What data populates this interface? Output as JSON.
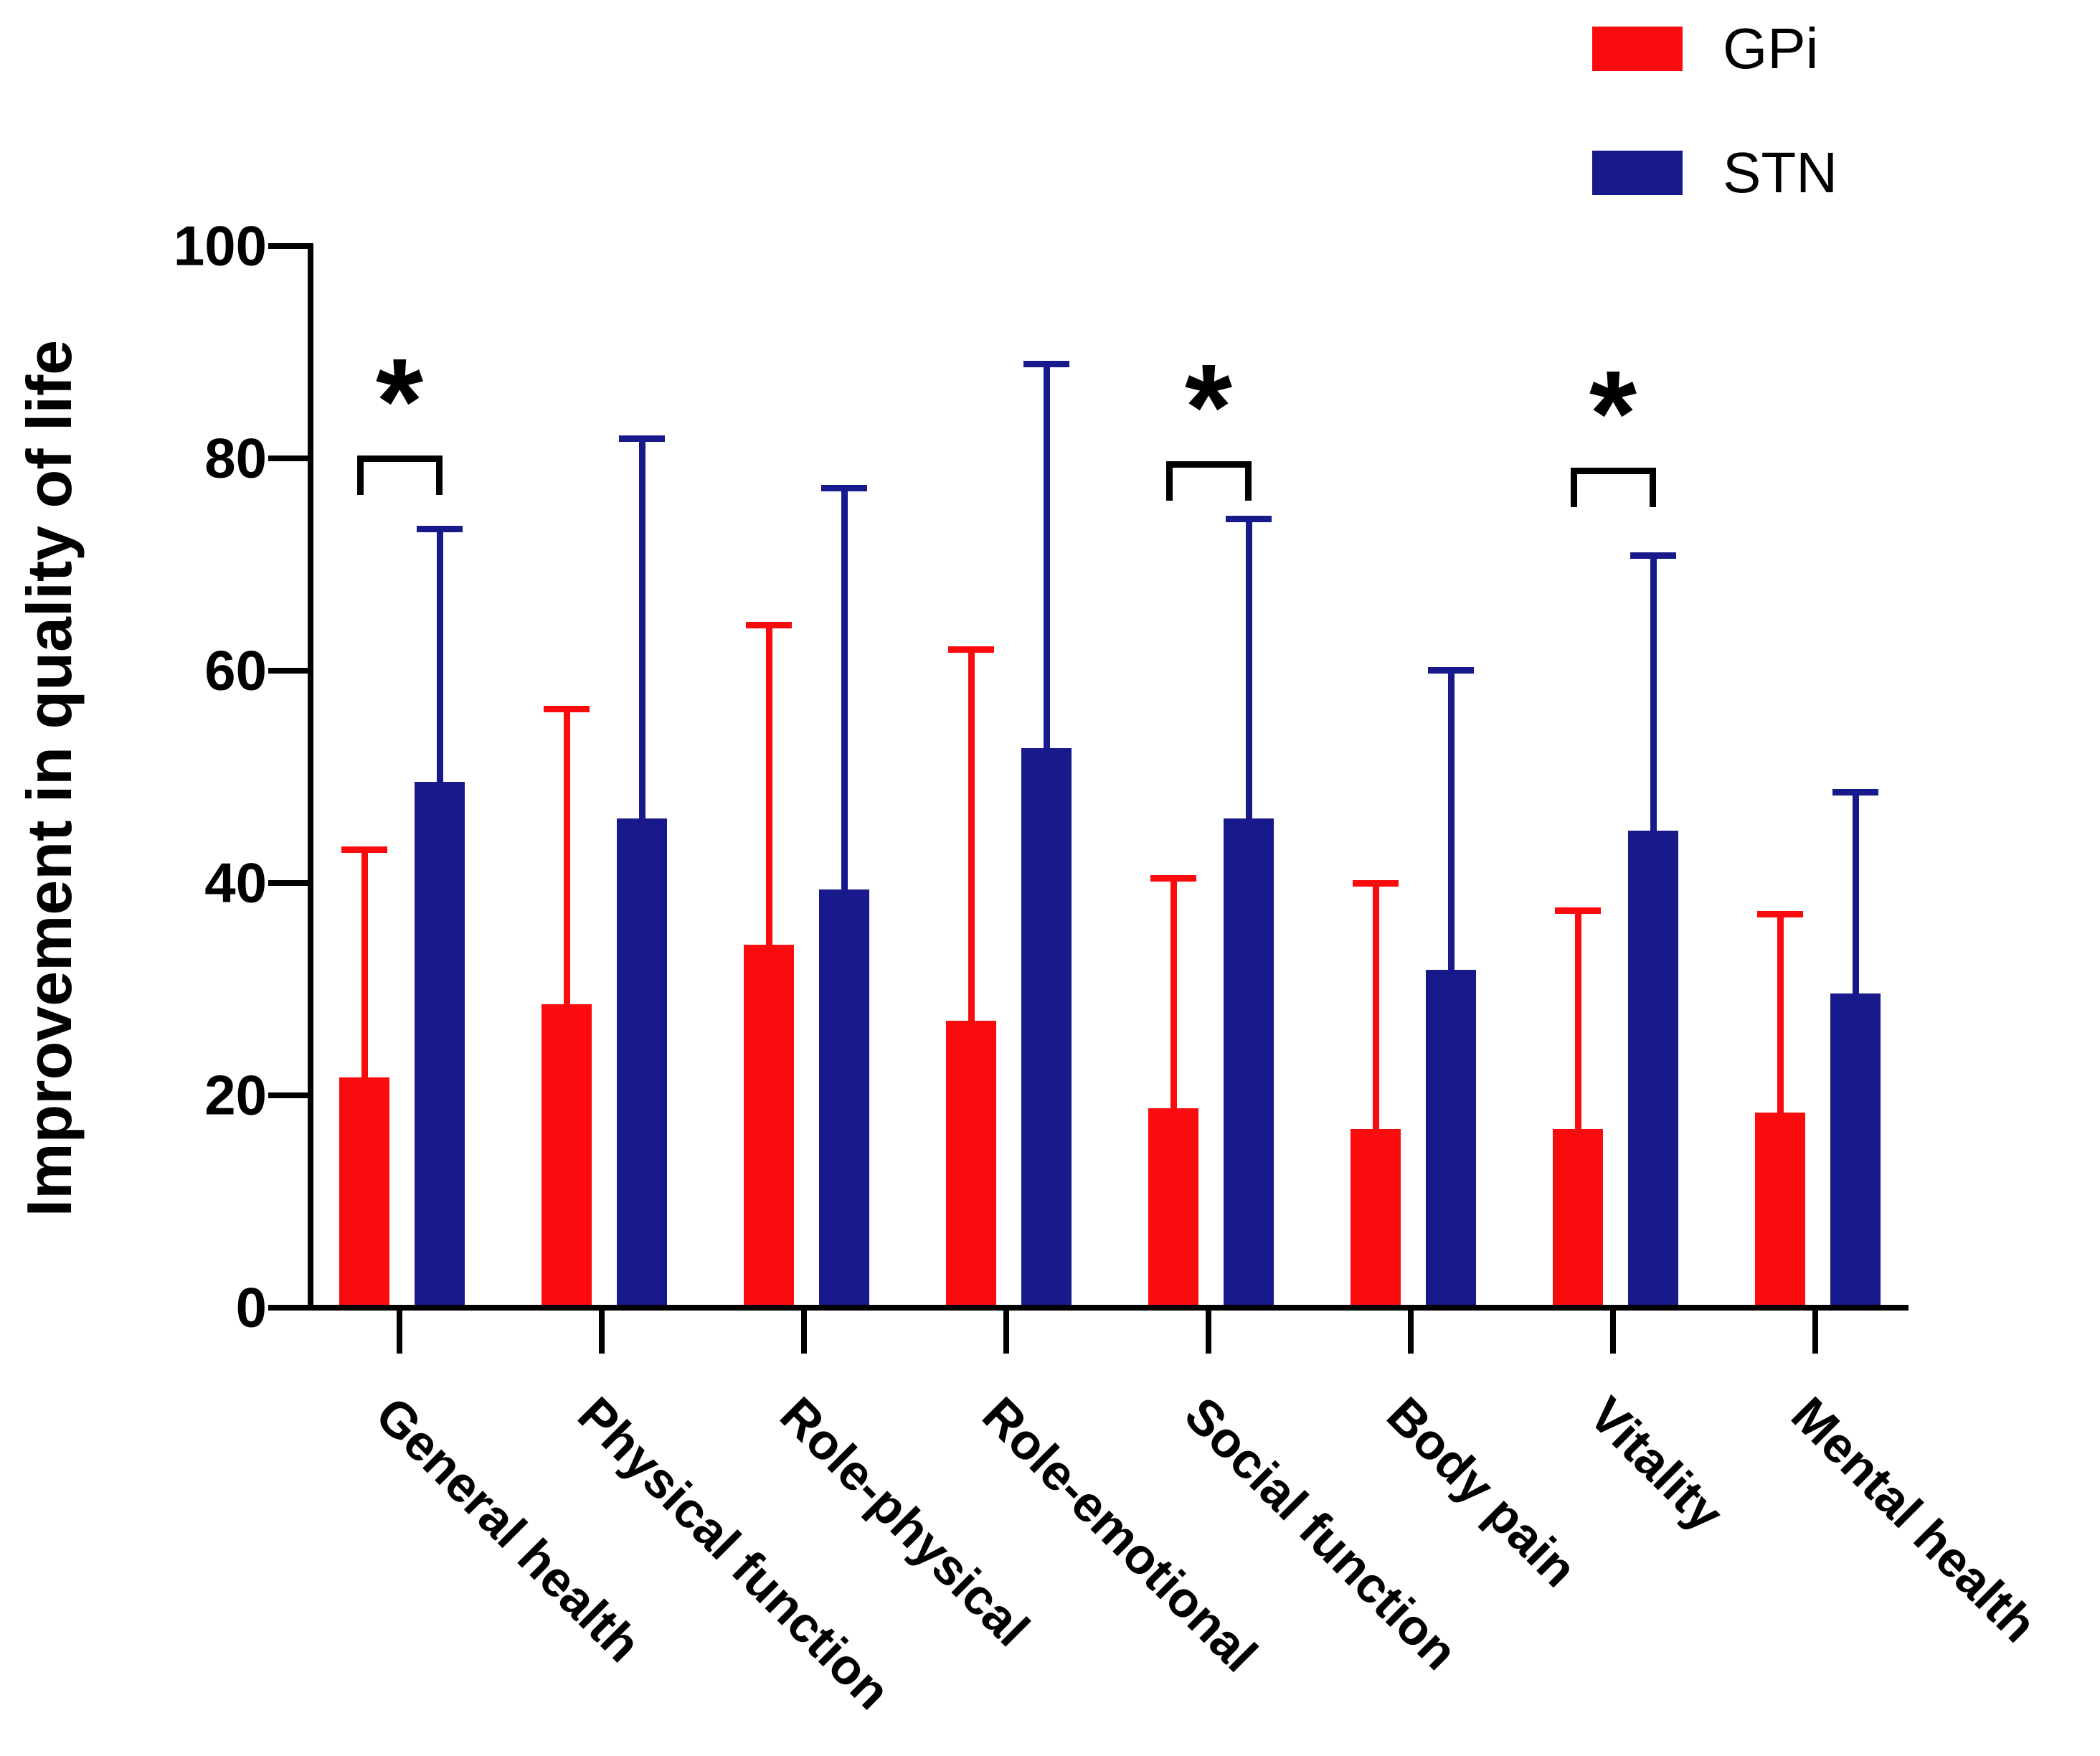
{
  "chart_data": {
    "type": "bar",
    "title": "",
    "ylabel": "Improvement in quality of life",
    "xlabel": "",
    "ylim": [
      0,
      100
    ],
    "yticks": [
      0,
      20,
      40,
      60,
      80,
      100
    ],
    "grid": false,
    "legend_position": "top-right",
    "categories": [
      "General health",
      "Physical function",
      "Role-physical",
      "Role-emotional",
      "Social function",
      "Body pain",
      "Vitality",
      "Mental health"
    ],
    "series": [
      {
        "name": "GPi",
        "color": "#fa0b0e",
        "values": [
          21.7,
          28.6,
          34.2,
          27.0,
          18.8,
          16.8,
          16.8,
          18.4
        ],
        "errors_up": [
          21.5,
          27.8,
          30.1,
          35.0,
          21.7,
          23.2,
          20.6,
          18.7
        ]
      },
      {
        "name": "STN",
        "color": "#18198b",
        "values": [
          49.5,
          46.1,
          39.4,
          52.7,
          46.1,
          31.8,
          44.9,
          29.6
        ],
        "errors_up": [
          23.9,
          35.8,
          37.8,
          36.2,
          28.2,
          28.3,
          26.0,
          19.0
        ]
      }
    ],
    "significance": {
      "marker": "*",
      "group_indices": [
        0,
        4,
        6
      ],
      "bracket_values_y": [
        80.3,
        79.7,
        79.1
      ]
    }
  },
  "legend": {
    "items": [
      {
        "label": "GPi",
        "color": "#fa0b0e"
      },
      {
        "label": "STN",
        "color": "#18198b"
      }
    ]
  },
  "colors": {
    "axis": "#000000",
    "background": "#ffffff"
  }
}
